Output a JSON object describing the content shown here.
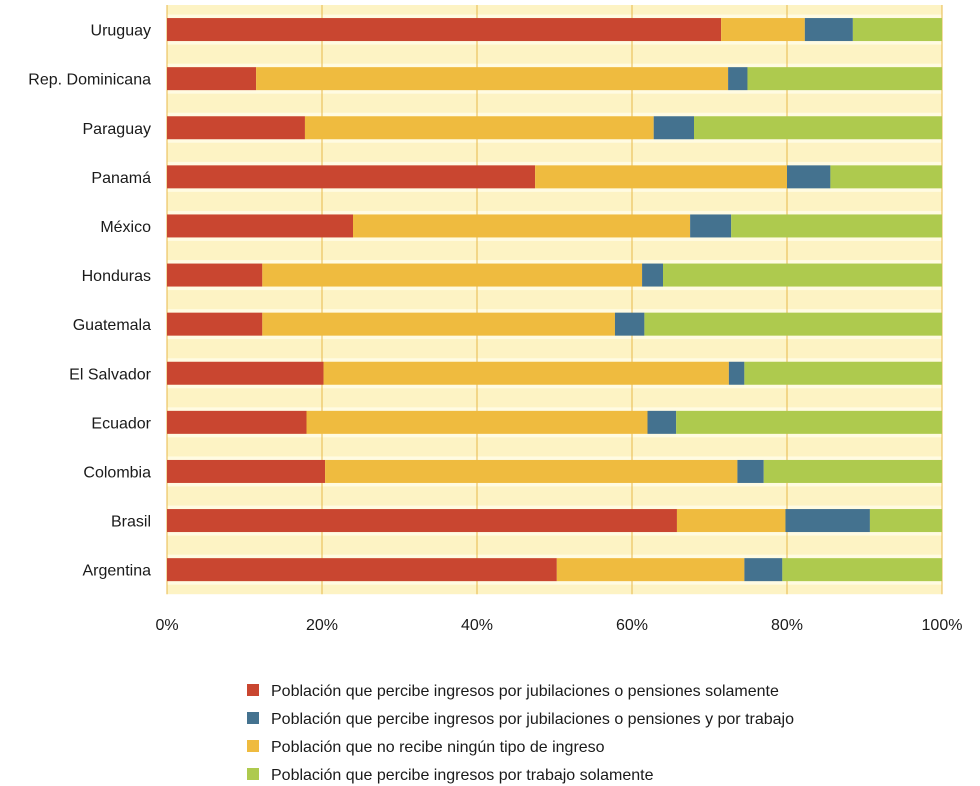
{
  "chart_data": {
    "type": "bar",
    "orientation": "horizontal",
    "stacked": true,
    "categories": [
      "Uruguay",
      "Rep. Dominicana",
      "Paraguay",
      "Panamá",
      "México",
      "Honduras",
      "Guatemala",
      "El Salvador",
      "Ecuador",
      "Colombia",
      "Brasil",
      "Argentina"
    ],
    "series": [
      {
        "name": "Población que percibe ingresos por jubilaciones o  pensiones solamente",
        "color": "#c94630",
        "values": [
          71.5,
          11.5,
          17.8,
          47.5,
          24.0,
          12.3,
          12.3,
          20.2,
          18.0,
          20.4,
          65.8,
          50.3
        ]
      },
      {
        "name": "Población que no recibe ningún tipo de ingreso",
        "color": "#efbb3f",
        "values": [
          10.8,
          60.9,
          45.0,
          32.5,
          43.5,
          49.0,
          45.5,
          52.3,
          44.0,
          53.2,
          14.0,
          24.2
        ]
      },
      {
        "name": "Población que percibe ingresos por jubilaciones o pensiones y por trabajo",
        "color": "#44728f",
        "values": [
          6.2,
          2.5,
          5.2,
          5.6,
          5.3,
          2.7,
          3.8,
          2.0,
          3.7,
          3.4,
          10.9,
          4.9
        ]
      },
      {
        "name": "Población que percibe ingresos por trabajo solamente",
        "color": "#aeca4e",
        "values": [
          11.5,
          25.1,
          32.0,
          14.4,
          27.2,
          36.0,
          38.4,
          25.5,
          34.3,
          23.0,
          9.3,
          20.6
        ]
      }
    ],
    "legend_order": [
      0,
      2,
      1,
      3
    ],
    "xlim": [
      0,
      100
    ],
    "x_ticks": [
      "0%",
      "20%",
      "40%",
      "60%",
      "80%",
      "100%"
    ],
    "grid": true,
    "legend_position": "bottom"
  }
}
